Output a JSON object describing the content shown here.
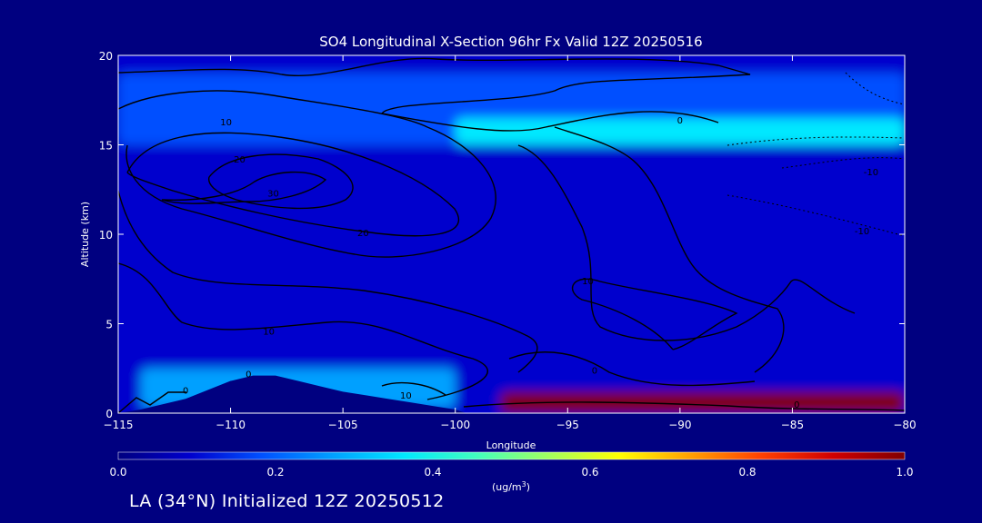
{
  "chart_data": {
    "type": "heatmap",
    "title": "SO4 Longitudinal X-Section 96hr  Fx Valid 12Z 20250516",
    "xlabel": "Longitude",
    "ylabel": "Altitude (km)",
    "xlim": [
      -115,
      -80
    ],
    "ylim": [
      0,
      20
    ],
    "x_ticks": [
      -115,
      -110,
      -105,
      -100,
      -95,
      -90,
      -85,
      -80
    ],
    "x_tick_labels": [
      "−115",
      "−110",
      "−105",
      "−100",
      "−95",
      "−90",
      "−85",
      "−80"
    ],
    "y_ticks": [
      0,
      5,
      10,
      15,
      20
    ],
    "y_tick_labels": [
      "0",
      "5",
      "10",
      "15",
      "20"
    ],
    "colorbar": {
      "label_main": "(ug/m",
      "label_sup": "3",
      "label_end": ")",
      "range": [
        0.0,
        1.0
      ],
      "ticks": [
        0.0,
        0.2,
        0.4,
        0.6,
        0.8,
        1.0
      ],
      "tick_labels": [
        "0.0",
        "0.2",
        "0.4",
        "0.6",
        "0.8",
        "1.0"
      ],
      "colors": [
        "#000080",
        "#0000cd",
        "#0050ff",
        "#00a0ff",
        "#00e8ff",
        "#40ffbf",
        "#a0ff60",
        "#ffff00",
        "#ffa000",
        "#ff4000",
        "#d00000",
        "#800000"
      ]
    },
    "field_features": [
      {
        "name": "background",
        "value": 0.12
      },
      {
        "name": "upper-troposphere band",
        "lon": [
          -115,
          -80
        ],
        "alt": [
          15,
          19
        ],
        "value": 0.18
      },
      {
        "name": "tropopause layer",
        "lon": [
          -100,
          -80
        ],
        "alt": [
          15,
          16.5
        ],
        "value": 0.4
      },
      {
        "name": "boundary layer west",
        "lon": [
          -114,
          -100
        ],
        "alt": [
          0.3,
          2.5
        ],
        "value": 0.25
      },
      {
        "name": "surface maximum",
        "lon": [
          -98,
          -80
        ],
        "alt": [
          0,
          1.2
        ],
        "value": 1.0
      }
    ],
    "terrain_profile": {
      "lon": [
        -115,
        -114,
        -113,
        -112,
        -111,
        -110,
        -109,
        -108,
        -107,
        -106,
        -105,
        -104,
        -103,
        -102,
        -101,
        -100,
        -99.5
      ],
      "alt": [
        0,
        0.2,
        0.5,
        0.8,
        1.3,
        1.8,
        2.1,
        2.1,
        1.8,
        1.5,
        1.2,
        1.0,
        0.8,
        0.6,
        0.4,
        0.2,
        0
      ]
    },
    "contour_labels": [
      {
        "text": "10",
        "lon": -110.2,
        "alt": 16.1
      },
      {
        "text": "20",
        "lon": -109.6,
        "alt": 14.0
      },
      {
        "text": "30",
        "lon": -108.1,
        "alt": 12.1
      },
      {
        "text": "20",
        "lon": -104.1,
        "alt": 9.9
      },
      {
        "text": "10",
        "lon": -108.3,
        "alt": 4.4
      },
      {
        "text": "0",
        "lon": -109.2,
        "alt": 2.0
      },
      {
        "text": "0",
        "lon": -112.0,
        "alt": 1.1
      },
      {
        "text": "10",
        "lon": -102.2,
        "alt": 0.8
      },
      {
        "text": "0",
        "lon": -90.0,
        "alt": 16.2
      },
      {
        "text": "10",
        "lon": -94.1,
        "alt": 7.2
      },
      {
        "text": "0",
        "lon": -93.8,
        "alt": 2.2
      },
      {
        "text": "0",
        "lon": -84.8,
        "alt": 0.3
      },
      {
        "text": "-10",
        "lon": -81.5,
        "alt": 13.3
      },
      {
        "text": "-10",
        "lon": -81.9,
        "alt": 10.0
      }
    ]
  },
  "footer": {
    "text": "LA (34°N) Initialized 12Z 20250512"
  }
}
